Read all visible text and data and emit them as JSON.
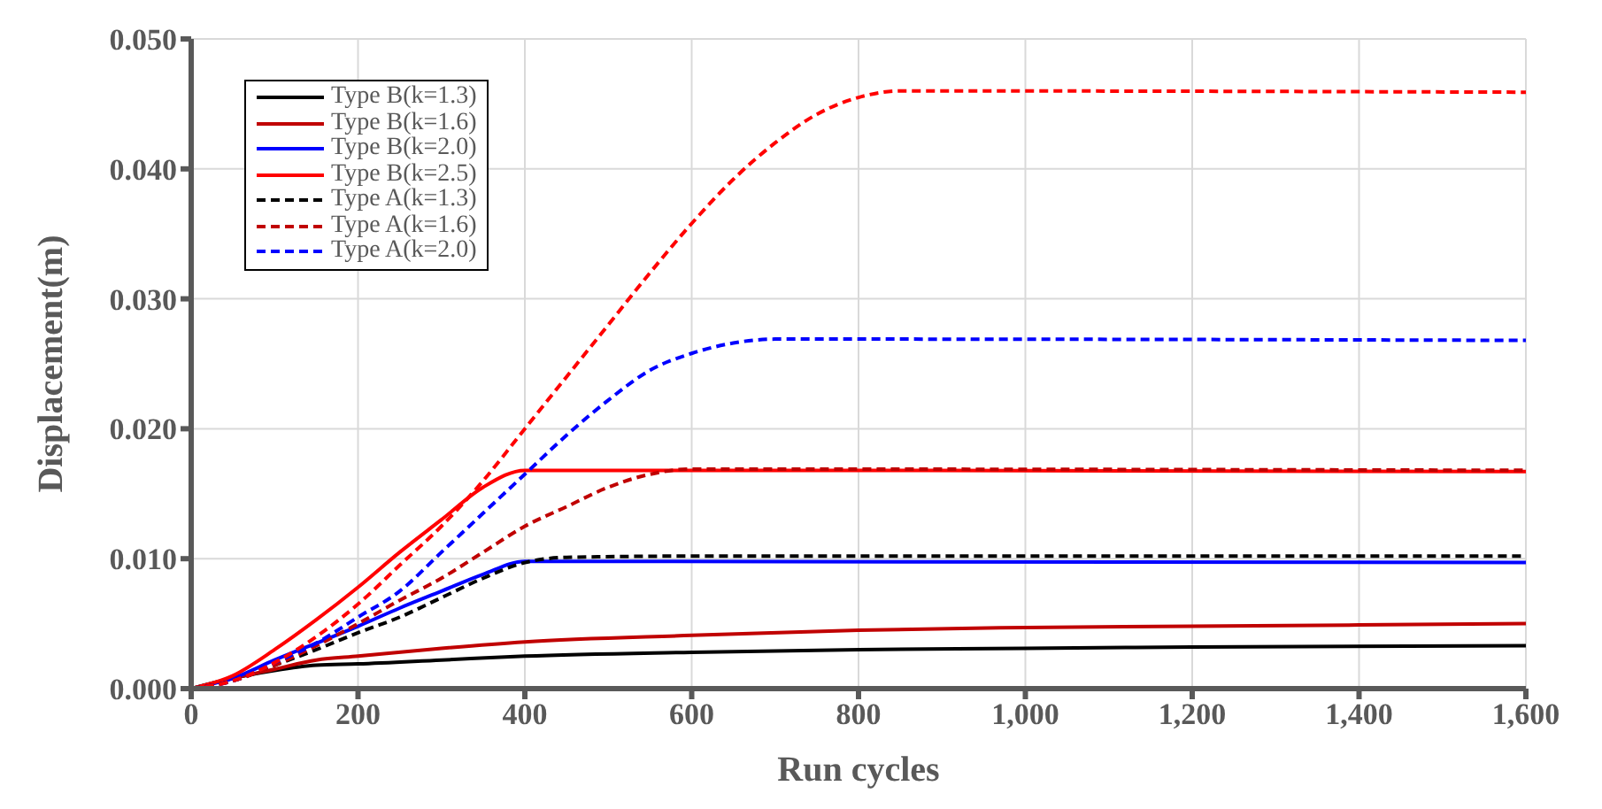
{
  "chart_data": {
    "type": "line",
    "xlabel": "Run cycles",
    "ylabel": "Displacement(m)",
    "xlim": [
      0,
      1600
    ],
    "xticks": [
      0,
      200,
      400,
      600,
      800,
      {
        "value": 1000,
        "label": "1,000"
      },
      {
        "value": 1200,
        "label": "1,200"
      },
      {
        "value": 1400,
        "label": "1,400"
      },
      {
        "value": 1600,
        "label": "1,600"
      }
    ],
    "ylim": [
      0,
      0.05
    ],
    "yticks": [
      {
        "value": 0,
        "label": "0.000"
      },
      {
        "value": 0.01,
        "label": "0.010"
      },
      {
        "value": 0.02,
        "label": "0.020"
      },
      {
        "value": 0.03,
        "label": "0.030"
      },
      {
        "value": 0.04,
        "label": "0.040"
      },
      {
        "value": 0.05,
        "label": "0.050"
      }
    ],
    "grid": true,
    "legend": "top left",
    "marker": "none",
    "series": [
      {
        "name": "Type B(k=1.3)",
        "color": "#000000",
        "line_style": "solid",
        "x": [
          0,
          50,
          100,
          150,
          200,
          300,
          400,
          600,
          800,
          1000,
          1200,
          1600
        ],
        "values": [
          0,
          0.0008,
          0.0014,
          0.0018,
          0.0019,
          0.0022,
          0.0025,
          0.0028,
          0.003,
          0.0031,
          0.0032,
          0.0033
        ]
      },
      {
        "name": "Type B(k=1.6)",
        "color": "#c00000",
        "line_style": "solid",
        "x": [
          0,
          50,
          100,
          150,
          200,
          300,
          400,
          600,
          800,
          1000,
          1200,
          1600
        ],
        "values": [
          0,
          0.0008,
          0.0015,
          0.0022,
          0.0025,
          0.0031,
          0.0036,
          0.0041,
          0.0045,
          0.0047,
          0.0048,
          0.005
        ]
      },
      {
        "name": "Type B(k=2.0)",
        "color": "#0000ff",
        "line_style": "solid",
        "x": [
          0,
          50,
          100,
          150,
          200,
          250,
          300,
          350,
          400,
          450,
          1600
        ],
        "values": [
          0,
          0.0008,
          0.0022,
          0.0035,
          0.0048,
          0.0062,
          0.0075,
          0.0088,
          0.0098,
          0.0098,
          0.0097
        ]
      },
      {
        "name": "Type B(k=2.5)",
        "color": "#ff0000",
        "line_style": "solid",
        "x": [
          0,
          50,
          100,
          150,
          200,
          250,
          300,
          350,
          400,
          500,
          1600
        ],
        "values": [
          0,
          0.001,
          0.003,
          0.0053,
          0.0078,
          0.0105,
          0.013,
          0.0155,
          0.0168,
          0.0168,
          0.0167
        ]
      },
      {
        "name": "Type A(k=1.3)",
        "color": "#000000",
        "line_style": "dashed",
        "x": [
          0,
          50,
          100,
          150,
          200,
          250,
          300,
          350,
          400,
          450,
          600,
          1600
        ],
        "values": [
          0,
          0.0006,
          0.0018,
          0.003,
          0.0043,
          0.0055,
          0.007,
          0.0085,
          0.0097,
          0.0101,
          0.0102,
          0.0102
        ]
      },
      {
        "name": "Type A(k=1.6)",
        "color": "#c00000",
        "line_style": "dashed",
        "x": [
          0,
          50,
          100,
          150,
          200,
          250,
          300,
          350,
          400,
          450,
          500,
          550,
          600,
          1600
        ],
        "values": [
          0,
          0.0006,
          0.0018,
          0.0033,
          0.005,
          0.0068,
          0.0085,
          0.0105,
          0.0125,
          0.014,
          0.0155,
          0.0165,
          0.0169,
          0.0168
        ]
      },
      {
        "name": "Type A(k=2.0)",
        "color": "#0000ff",
        "line_style": "dashed",
        "x": [
          0,
          50,
          100,
          150,
          200,
          250,
          300,
          350,
          400,
          450,
          500,
          550,
          600,
          650,
          700,
          800,
          1600
        ],
        "values": [
          0,
          0.0006,
          0.002,
          0.0035,
          0.0055,
          0.0075,
          0.0105,
          0.0135,
          0.0165,
          0.0195,
          0.0222,
          0.0245,
          0.0258,
          0.0266,
          0.0269,
          0.0269,
          0.0268
        ]
      },
      {
        "color": "#ff0000",
        "line_style": "dashed",
        "x": [
          0,
          50,
          100,
          150,
          200,
          250,
          300,
          350,
          400,
          450,
          500,
          550,
          600,
          650,
          700,
          750,
          800,
          850,
          900,
          1600
        ],
        "values": [
          0,
          0.0006,
          0.002,
          0.004,
          0.0065,
          0.0095,
          0.0125,
          0.016,
          0.02,
          0.024,
          0.028,
          0.032,
          0.0358,
          0.0392,
          0.042,
          0.0442,
          0.0455,
          0.046,
          0.046,
          0.0459
        ]
      }
    ]
  }
}
